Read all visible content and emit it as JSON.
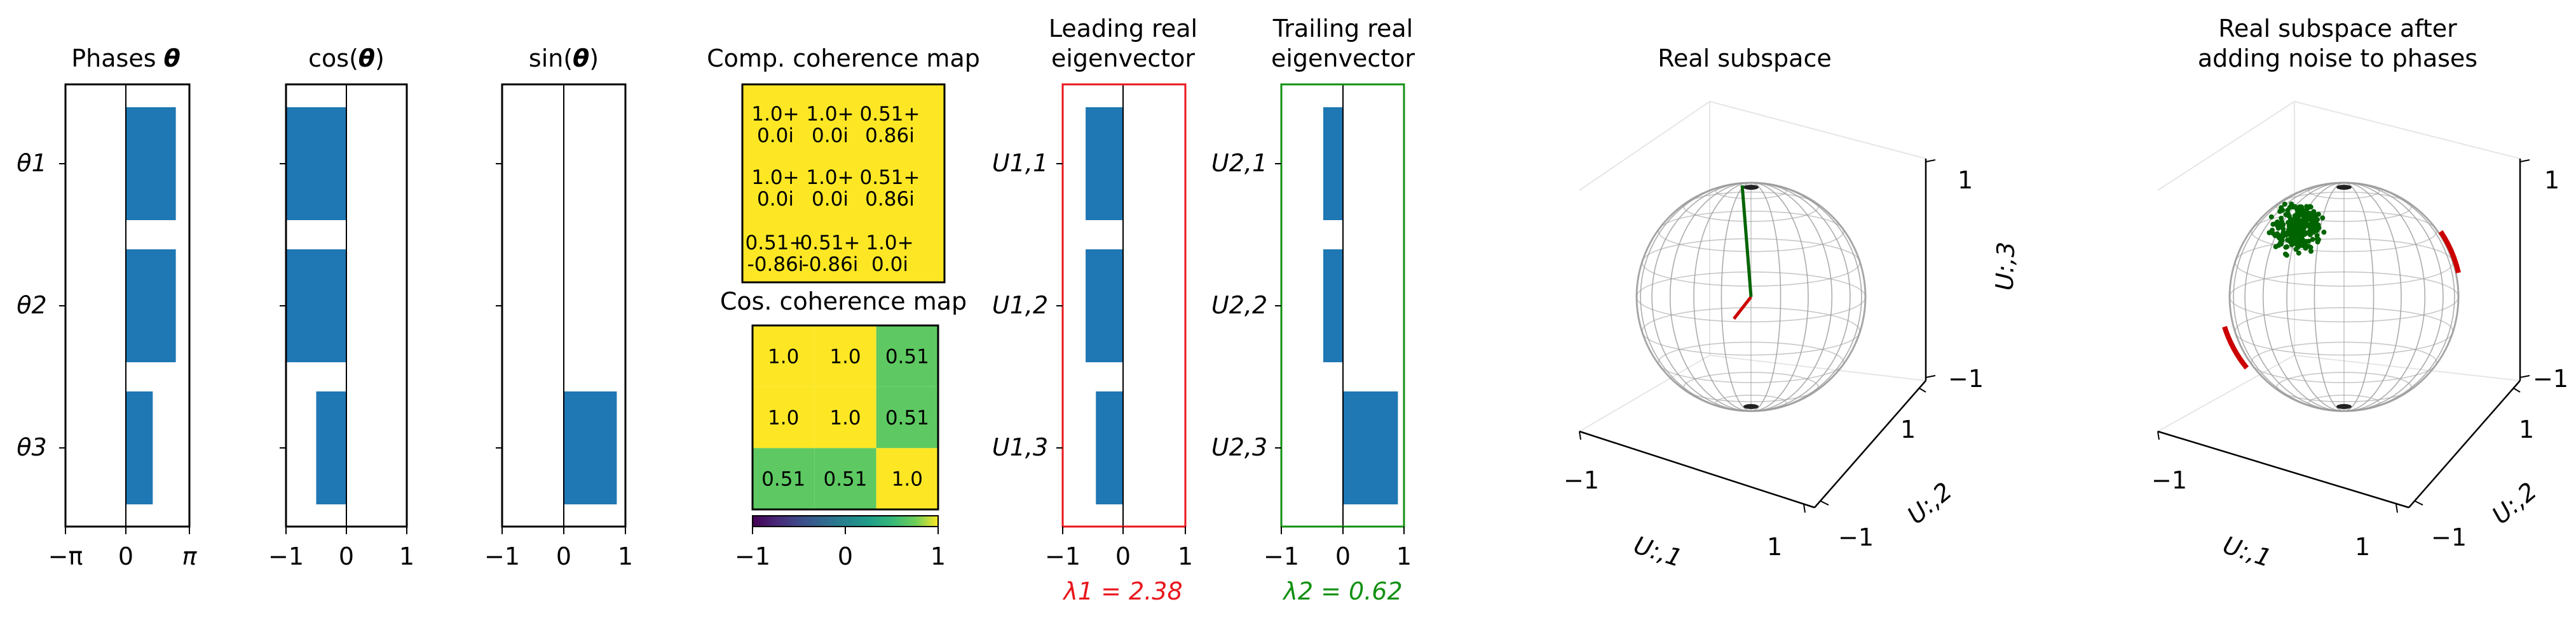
{
  "colors": {
    "bar": "#1f77b4",
    "lead_frame": "#e8161c",
    "trail_frame": "#129012",
    "coh_high": "#fde725",
    "coh_mid": "#5ec962",
    "sphere": "#9a9a9a",
    "vec_red": "#cc0000",
    "vec_green": "#006400"
  },
  "panels": {
    "phases": {
      "title_text": "Phases ",
      "title_sym": "θ",
      "y_labels": [
        "θ1",
        "θ2",
        "θ3"
      ],
      "x_ticks": [
        "−π",
        "0",
        "π"
      ]
    },
    "cos": {
      "title_pre": "cos(",
      "title_sym": "θ",
      "title_post": ")",
      "x_ticks": [
        "−1",
        "0",
        "1"
      ]
    },
    "sin": {
      "title_pre": "sin(",
      "title_sym": "θ",
      "title_post": ")",
      "x_ticks": [
        "−1",
        "0",
        "1"
      ]
    },
    "comp_map": {
      "title": "Comp. coherence map",
      "cells": [
        [
          "1.0+\n0.0i",
          "1.0+\n0.0i",
          "0.51+\n0.86i"
        ],
        [
          "1.0+\n0.0i",
          "1.0+\n0.0i",
          "0.51+\n0.86i"
        ],
        [
          "0.51+\n-0.86i",
          "0.51+\n-0.86i",
          "1.0+\n0.0i"
        ]
      ]
    },
    "cos_map": {
      "title": "Cos. coherence map",
      "cells": [
        [
          "1.0",
          "1.0",
          "0.51"
        ],
        [
          "1.0",
          "1.0",
          "0.51"
        ],
        [
          "0.51",
          "0.51",
          "1.0"
        ]
      ],
      "values": [
        [
          1.0,
          1.0,
          0.51
        ],
        [
          1.0,
          1.0,
          0.51
        ],
        [
          0.51,
          0.51,
          1.0
        ]
      ],
      "colorbar_ticks": [
        "−1",
        "0",
        "1"
      ]
    },
    "lead": {
      "title_line1": "Leading real",
      "title_line2": "eigenvector",
      "y_labels": [
        "U1,1",
        "U1,2",
        "U1,3"
      ],
      "x_ticks": [
        "−1",
        "0",
        "1"
      ],
      "eigen_label": "λ1 = 2.38"
    },
    "trail": {
      "title_line1": "Trailing real",
      "title_line2": "eigenvector",
      "y_labels": [
        "U2,1",
        "U2,2",
        "U2,3"
      ],
      "x_ticks": [
        "−1",
        "0",
        "1"
      ],
      "eigen_label": "λ2 = 0.62"
    },
    "sphere1": {
      "title_line1": "Real subspace",
      "title_line2": "",
      "z_ticks": [
        "1",
        "−1"
      ],
      "y_ticks": [
        "1",
        "−1"
      ],
      "x_ticks": [
        "−1",
        "1"
      ],
      "x_label": "U:,1",
      "y_label": "U:,2",
      "z_label": "U:,3"
    },
    "sphere2": {
      "title_line1": "Real subspace after",
      "title_line2": "adding noise to phases",
      "z_ticks": [
        "1",
        "−1"
      ],
      "y_ticks": [
        "1",
        "−1"
      ],
      "x_ticks": [
        "−1",
        "1"
      ],
      "x_label": "U:,1",
      "y_label": "U:,2"
    }
  },
  "chart_data": [
    {
      "type": "bar",
      "orientation": "horizontal",
      "title": "Phases θ",
      "categories": [
        "θ1",
        "θ2",
        "θ3"
      ],
      "values": [
        2.6,
        2.6,
        1.4
      ],
      "xlim": [
        -3.1416,
        3.1416
      ]
    },
    {
      "type": "bar",
      "orientation": "horizontal",
      "title": "cos(θ)",
      "categories": [
        "θ1",
        "θ2",
        "θ3"
      ],
      "values": [
        -1.0,
        -1.0,
        -0.5
      ],
      "xlim": [
        -1,
        1
      ]
    },
    {
      "type": "bar",
      "orientation": "horizontal",
      "title": "sin(θ)",
      "categories": [
        "θ1",
        "θ2",
        "θ3"
      ],
      "values": [
        0.0,
        0.0,
        0.86
      ],
      "xlim": [
        -1,
        1
      ]
    },
    {
      "type": "heatmap",
      "title": "Comp. coherence map",
      "values": [
        [
          "1.0+0.0i",
          "1.0+0.0i",
          "0.51+0.86i"
        ],
        [
          "1.0+0.0i",
          "1.0+0.0i",
          "0.51+0.86i"
        ],
        [
          "0.51+-0.86i",
          "0.51+-0.86i",
          "1.0+0.0i"
        ]
      ]
    },
    {
      "type": "heatmap",
      "title": "Cos. coherence map",
      "values": [
        [
          1.0,
          1.0,
          0.51
        ],
        [
          1.0,
          1.0,
          0.51
        ],
        [
          0.51,
          0.51,
          1.0
        ]
      ],
      "colorbar_range": [
        -1,
        1
      ]
    },
    {
      "type": "bar",
      "orientation": "horizontal",
      "title": "Leading real eigenvector",
      "categories": [
        "U1,1",
        "U1,2",
        "U1,3"
      ],
      "values": [
        -0.62,
        -0.62,
        -0.45
      ],
      "xlim": [
        -1,
        1
      ],
      "eigenvalue": 2.38
    },
    {
      "type": "bar",
      "orientation": "horizontal",
      "title": "Trailing real eigenvector",
      "categories": [
        "U2,1",
        "U2,2",
        "U2,3"
      ],
      "values": [
        -0.32,
        -0.32,
        0.9
      ],
      "xlim": [
        -1,
        1
      ],
      "eigenvalue": 0.62
    },
    {
      "type": "scatter",
      "title": "Real subspace",
      "xlim": [
        -1,
        1
      ],
      "ylim": [
        -1,
        1
      ],
      "zlim": [
        -1,
        1
      ],
      "vectors": [
        {
          "color": "red",
          "to": [
            -0.62,
            -0.62,
            -0.45
          ]
        },
        {
          "color": "green",
          "to": [
            -0.32,
            -0.32,
            0.9
          ]
        }
      ]
    },
    {
      "type": "scatter",
      "title": "Real subspace after adding noise to phases",
      "xlim": [
        -1,
        1
      ],
      "ylim": [
        -1,
        1
      ],
      "zlim": [
        -1,
        1
      ]
    }
  ]
}
